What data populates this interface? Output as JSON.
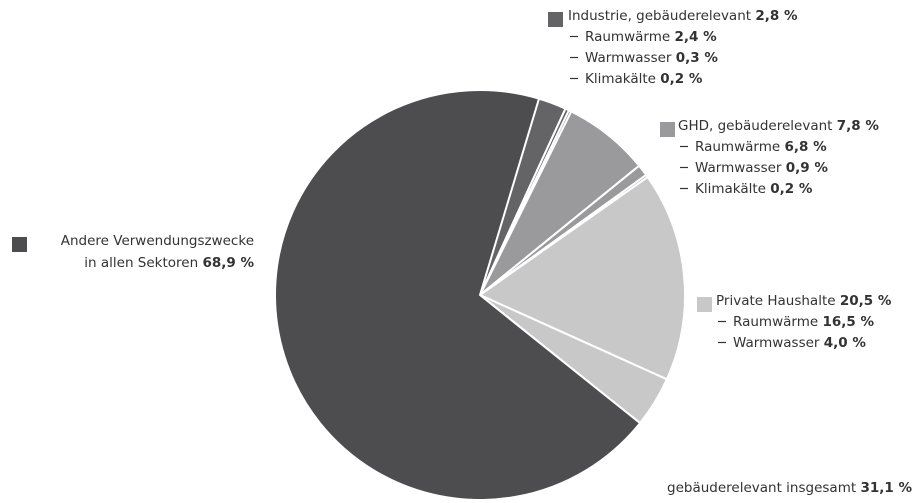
{
  "chart_data": {
    "type": "pie",
    "groups": [
      {
        "name": [
          "Andere Verwendungszwecke",
          "in allen Sektoren"
        ],
        "value": 68.9,
        "value_label": "68,9 %",
        "color": "#4d4d4f",
        "parts": []
      },
      {
        "name": [
          "Industrie, gebäuderelevant"
        ],
        "value": 2.8,
        "value_label": "2,8 %",
        "color": "#646466",
        "parts": [
          {
            "name": "Raumwärme",
            "value": 2.4,
            "value_label": "2,4 %"
          },
          {
            "name": "Warmwasser",
            "value": 0.3,
            "value_label": "0,3 %"
          },
          {
            "name": "Klimakälte",
            "value": 0.2,
            "value_label": "0,2 %"
          }
        ]
      },
      {
        "name": [
          "GHD, gebäuderelevant"
        ],
        "value": 7.8,
        "value_label": "7,8 %",
        "color": "#9a9a9c",
        "parts": [
          {
            "name": "Raumwärme",
            "value": 6.8,
            "value_label": "6,8 %"
          },
          {
            "name": "Warmwasser",
            "value": 0.9,
            "value_label": "0,9 %"
          },
          {
            "name": "Klimakälte",
            "value": 0.2,
            "value_label": "0,2 %"
          }
        ]
      },
      {
        "name": [
          "Private Haushalte"
        ],
        "value": 20.5,
        "value_label": "20,5 %",
        "color": "#c8c8c9",
        "parts": [
          {
            "name": "Raumwärme",
            "value": 16.5,
            "value_label": "16,5 %"
          },
          {
            "name": "Warmwasser",
            "value": 4.0,
            "value_label": "4,0 %"
          }
        ]
      }
    ],
    "total": {
      "name": "gebäuderelevant insgesamt",
      "value": 31.1,
      "value_label": "31,1 %"
    }
  }
}
